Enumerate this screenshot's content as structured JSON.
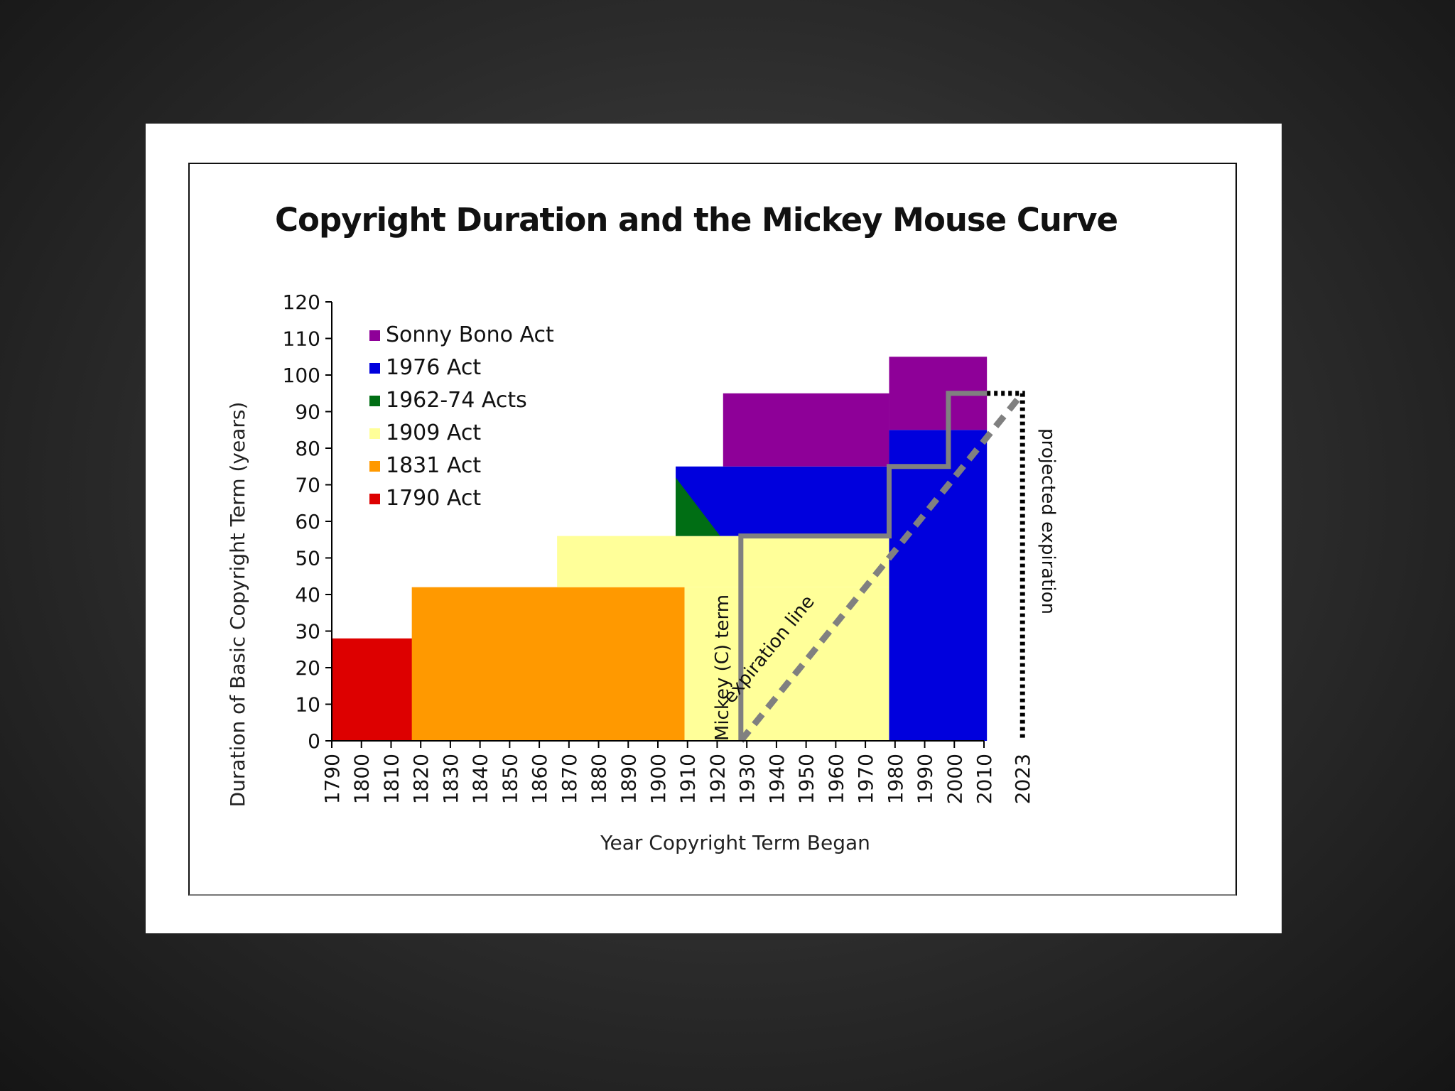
{
  "chart_data": {
    "type": "area",
    "title": "Copyright Duration and the Mickey Mouse Curve",
    "xlabel": "Year Copyright Term Began",
    "ylabel": "Duration of Basic Copyright Term (years)",
    "ylim": [
      0,
      120
    ],
    "yticks": [
      0,
      10,
      20,
      30,
      40,
      50,
      60,
      70,
      80,
      90,
      100,
      110,
      120
    ],
    "xticks": [
      "1790",
      "1800",
      "1810",
      "1820",
      "1830",
      "1840",
      "1850",
      "1860",
      "1870",
      "1880",
      "1890",
      "1900",
      "1910",
      "1920",
      "1930",
      "1940",
      "1950",
      "1960",
      "1970",
      "1980",
      "1990",
      "2000",
      "2010",
      "2023"
    ],
    "legend_position": "top-left",
    "series": [
      {
        "name": "Sonny Bono Act",
        "color": "#8e0098",
        "blocks": [
          {
            "x0": 1922,
            "x1": 1978,
            "y0": 75,
            "y1": 95
          },
          {
            "x0": 1978,
            "x1": 2011,
            "y0": 85,
            "y1": 105
          }
        ]
      },
      {
        "name": "1976 Act",
        "color": "#0000dd",
        "blocks": [
          {
            "x0": 1906,
            "x1": 1978,
            "y0": 56,
            "y1": 75
          },
          {
            "x0": 1978,
            "x1": 2011,
            "y0": 0,
            "y1": 85
          }
        ]
      },
      {
        "name": "1962-74 Acts",
        "color": "#006e14",
        "blocks": [
          {
            "x0": 1906,
            "x1": 1921,
            "y0": 56,
            "y1": 72,
            "shape": "triangle"
          }
        ]
      },
      {
        "name": "1909 Act",
        "color": "#ffff99",
        "blocks": [
          {
            "x0": 1866,
            "x1": 1978,
            "y0": 42,
            "y1": 56
          },
          {
            "x0": 1909,
            "x1": 1978,
            "y0": 0,
            "y1": 42
          }
        ]
      },
      {
        "name": "1831 Act",
        "color": "#ff9900",
        "blocks": [
          {
            "x0": 1817,
            "x1": 1909,
            "y0": 0,
            "y1": 42
          }
        ]
      },
      {
        "name": "1790 Act",
        "color": "#dd0000",
        "blocks": [
          {
            "x0": 1790,
            "x1": 1831,
            "y0": 0,
            "y1": 28
          }
        ]
      }
    ],
    "mickey_term": {
      "label": "Mickey (C) term",
      "color": "#808080",
      "points": [
        [
          1928,
          0
        ],
        [
          1928,
          56
        ],
        [
          1978,
          56
        ],
        [
          1978,
          75
        ],
        [
          1998,
          75
        ],
        [
          1998,
          95
        ],
        [
          2011,
          95
        ]
      ]
    },
    "expiration_line": {
      "label": "expiration line",
      "color": "#808080",
      "points": [
        [
          1928,
          0
        ],
        [
          2023,
          95
        ]
      ]
    },
    "projected_expiration": {
      "label": "projected expiration",
      "x": 2023,
      "y": 95
    }
  }
}
